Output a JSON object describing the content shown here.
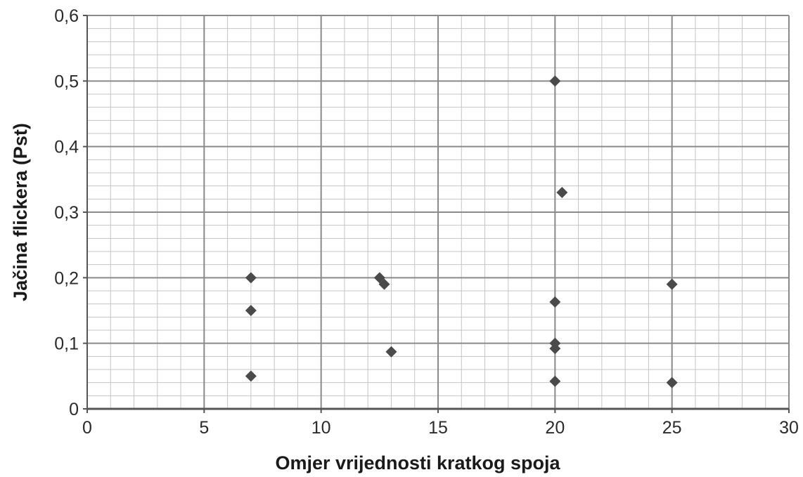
{
  "chart_data": {
    "type": "scatter",
    "title": "",
    "xlabel": "Omjer vrijednosti kratkog spoja",
    "ylabel": "Jačina flickera (Pst)",
    "xlim": [
      0,
      30
    ],
    "ylim": [
      0,
      0.6
    ],
    "x_ticks": [
      0,
      5,
      10,
      15,
      20,
      25,
      30
    ],
    "x_tick_labels": [
      "0",
      "5",
      "10",
      "15",
      "20",
      "25",
      "30"
    ],
    "y_ticks": [
      0,
      0.1,
      0.2,
      0.3,
      0.4,
      0.5,
      0.6
    ],
    "y_tick_labels": [
      "0",
      "0,1",
      "0,2",
      "0,3",
      "0,4",
      "0,5",
      "0,6"
    ],
    "grid": true,
    "legend": "none",
    "marker": "diamond",
    "marker_color": "#4a4a4a",
    "points": [
      {
        "x": 7,
        "y": 0.2
      },
      {
        "x": 7,
        "y": 0.15
      },
      {
        "x": 7,
        "y": 0.05
      },
      {
        "x": 12.5,
        "y": 0.2
      },
      {
        "x": 12.7,
        "y": 0.19
      },
      {
        "x": 13,
        "y": 0.087
      },
      {
        "x": 20,
        "y": 0.5
      },
      {
        "x": 20.3,
        "y": 0.33
      },
      {
        "x": 20,
        "y": 0.163
      },
      {
        "x": 20,
        "y": 0.1
      },
      {
        "x": 20,
        "y": 0.092
      },
      {
        "x": 20,
        "y": 0.042
      },
      {
        "x": 25,
        "y": 0.19
      },
      {
        "x": 25,
        "y": 0.04
      }
    ]
  }
}
